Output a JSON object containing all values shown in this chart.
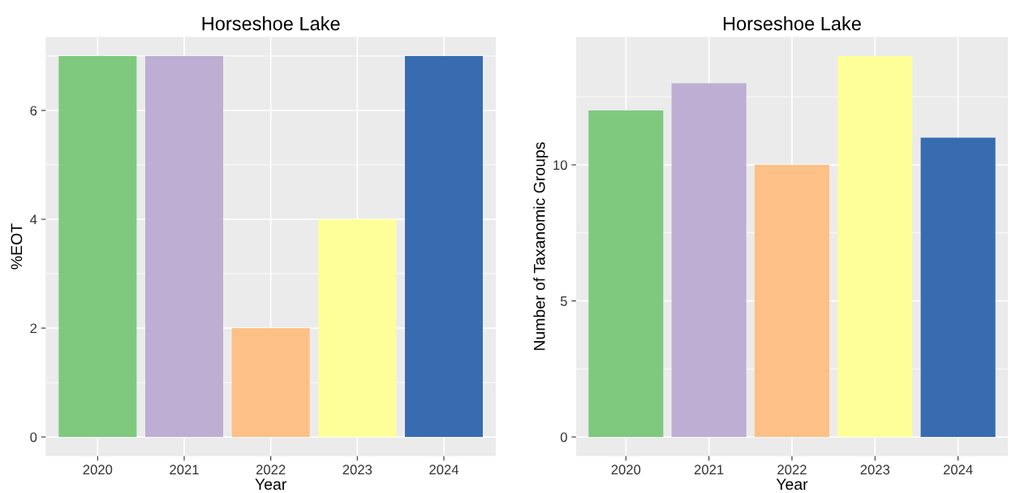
{
  "chart_data": [
    {
      "type": "bar",
      "title": "Horseshoe Lake",
      "xlabel": "Year",
      "ylabel": "%EOT",
      "categories": [
        "2020",
        "2021",
        "2022",
        "2023",
        "2024"
      ],
      "values": [
        7,
        7,
        2,
        4,
        7
      ],
      "colors": [
        "#7fc97f",
        "#beaed4",
        "#fdc086",
        "#ffff99",
        "#386cb0"
      ],
      "ylim": [
        -0.35,
        7.35
      ],
      "yticks": [
        0,
        2,
        4,
        6
      ],
      "grid": true,
      "legend": false
    },
    {
      "type": "bar",
      "title": "Horseshoe Lake",
      "xlabel": "Year",
      "ylabel": "Number of Taxanomic Groups",
      "categories": [
        "2020",
        "2021",
        "2022",
        "2023",
        "2024"
      ],
      "values": [
        12,
        13,
        10,
        14,
        11
      ],
      "colors": [
        "#7fc97f",
        "#beaed4",
        "#fdc086",
        "#ffff99",
        "#386cb0"
      ],
      "ylim": [
        -0.7,
        14.7
      ],
      "yticks": [
        0,
        5,
        10
      ],
      "grid": true,
      "legend": false
    }
  ]
}
